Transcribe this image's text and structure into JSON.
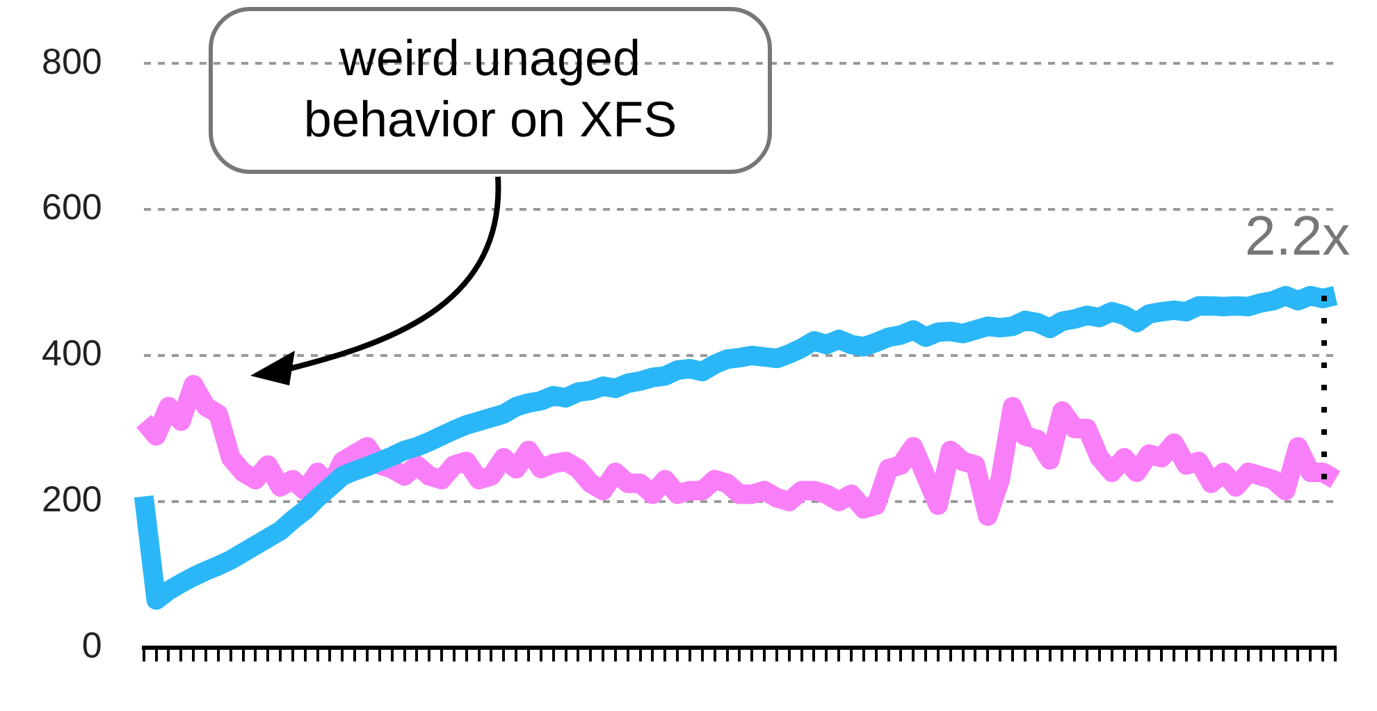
{
  "chart_data": {
    "type": "line",
    "categories": [
      null,
      null,
      null,
      null,
      null,
      null,
      null,
      null,
      null,
      null,
      null,
      null,
      null,
      null,
      null,
      null,
      null,
      null,
      null,
      null,
      null,
      null,
      null,
      null,
      null,
      null,
      null,
      null,
      null,
      null,
      null,
      null,
      null,
      null,
      null,
      null,
      null,
      null,
      null,
      null,
      null,
      null,
      null,
      null,
      null,
      null,
      null,
      null,
      null,
      null,
      null,
      null,
      null,
      null,
      null,
      null,
      null,
      null,
      null,
      null,
      null,
      null,
      null,
      null,
      null,
      null,
      null,
      null,
      null,
      null,
      null,
      null,
      null,
      null,
      null,
      null,
      null,
      null,
      null,
      null,
      null,
      null,
      null,
      null,
      null,
      null,
      null,
      null,
      null,
      null,
      null,
      null,
      null,
      null,
      null,
      null,
      null
    ],
    "series": [
      {
        "color": "#f97ff9",
        "values": [
          310,
          290,
          330,
          310,
          360,
          330,
          320,
          260,
          240,
          230,
          250,
          220,
          230,
          215,
          240,
          220,
          255,
          265,
          275,
          250,
          245,
          235,
          250,
          235,
          230,
          250,
          255,
          230,
          235,
          260,
          245,
          270,
          245,
          252,
          255,
          245,
          225,
          215,
          240,
          225,
          225,
          210,
          230,
          210,
          215,
          215,
          230,
          225,
          210,
          210,
          215,
          205,
          200,
          215,
          215,
          210,
          200,
          210,
          190,
          195,
          245,
          250,
          275,
          235,
          195,
          270,
          255,
          250,
          180,
          230,
          330,
          290,
          285,
          257,
          324,
          300,
          300,
          260,
          240,
          260,
          240,
          265,
          260,
          280,
          250,
          255,
          225,
          240,
          220,
          240,
          235,
          230,
          215,
          275,
          240,
          240,
          230
        ]
      },
      {
        "color": "#2bb7f7",
        "values": [
          207,
          65,
          78,
          88,
          97,
          105,
          112,
          120,
          130,
          140,
          150,
          160,
          175,
          188,
          205,
          220,
          235,
          242,
          248,
          255,
          262,
          270,
          275,
          282,
          290,
          298,
          305,
          310,
          315,
          320,
          330,
          335,
          338,
          345,
          342,
          350,
          352,
          358,
          355,
          362,
          365,
          370,
          372,
          380,
          382,
          378,
          388,
          395,
          397,
          400,
          398,
          396,
          402,
          410,
          420,
          415,
          422,
          415,
          412,
          418,
          425,
          428,
          435,
          425,
          432,
          433,
          430,
          435,
          440,
          438,
          440,
          448,
          445,
          437,
          447,
          450,
          455,
          452,
          460,
          455,
          445,
          457,
          460,
          462,
          460,
          468,
          468,
          467,
          468,
          467,
          472,
          475,
          482,
          475,
          482,
          478,
          482
        ]
      }
    ],
    "ylim": [
      0,
      800
    ],
    "yticks": [
      0,
      200,
      400,
      600,
      800
    ],
    "grid": "y",
    "tick_labels": "y",
    "marker": "none",
    "line_style": "solid",
    "legend": false,
    "annotations": [
      "weird unaged behavior on XFS",
      "2.2x"
    ]
  }
}
